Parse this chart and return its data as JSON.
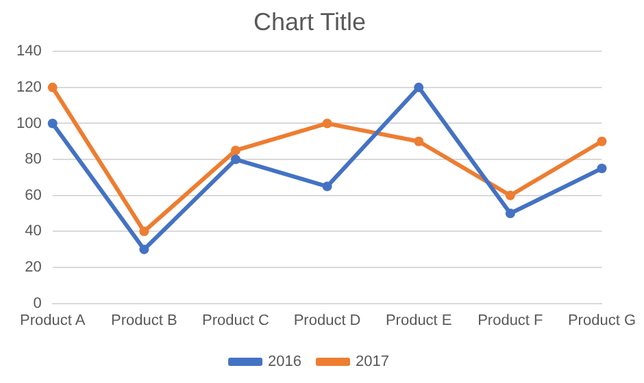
{
  "chart_data": {
    "type": "line",
    "title": "Chart Title",
    "categories": [
      "Product A",
      "Product B",
      "Product C",
      "Product D",
      "Product E",
      "Product F",
      "Product G"
    ],
    "series": [
      {
        "name": "2016",
        "color": "#4472c4",
        "values": [
          100,
          30,
          80,
          65,
          120,
          50,
          75
        ]
      },
      {
        "name": "2017",
        "color": "#ed7d31",
        "values": [
          120,
          40,
          85,
          100,
          90,
          60,
          90
        ]
      }
    ],
    "ylim": [
      0,
      140
    ],
    "yticks": [
      0,
      20,
      40,
      60,
      80,
      100,
      120,
      140
    ],
    "grid": "y",
    "legend": "bottom",
    "marker": "circle",
    "line_style": "solid"
  }
}
